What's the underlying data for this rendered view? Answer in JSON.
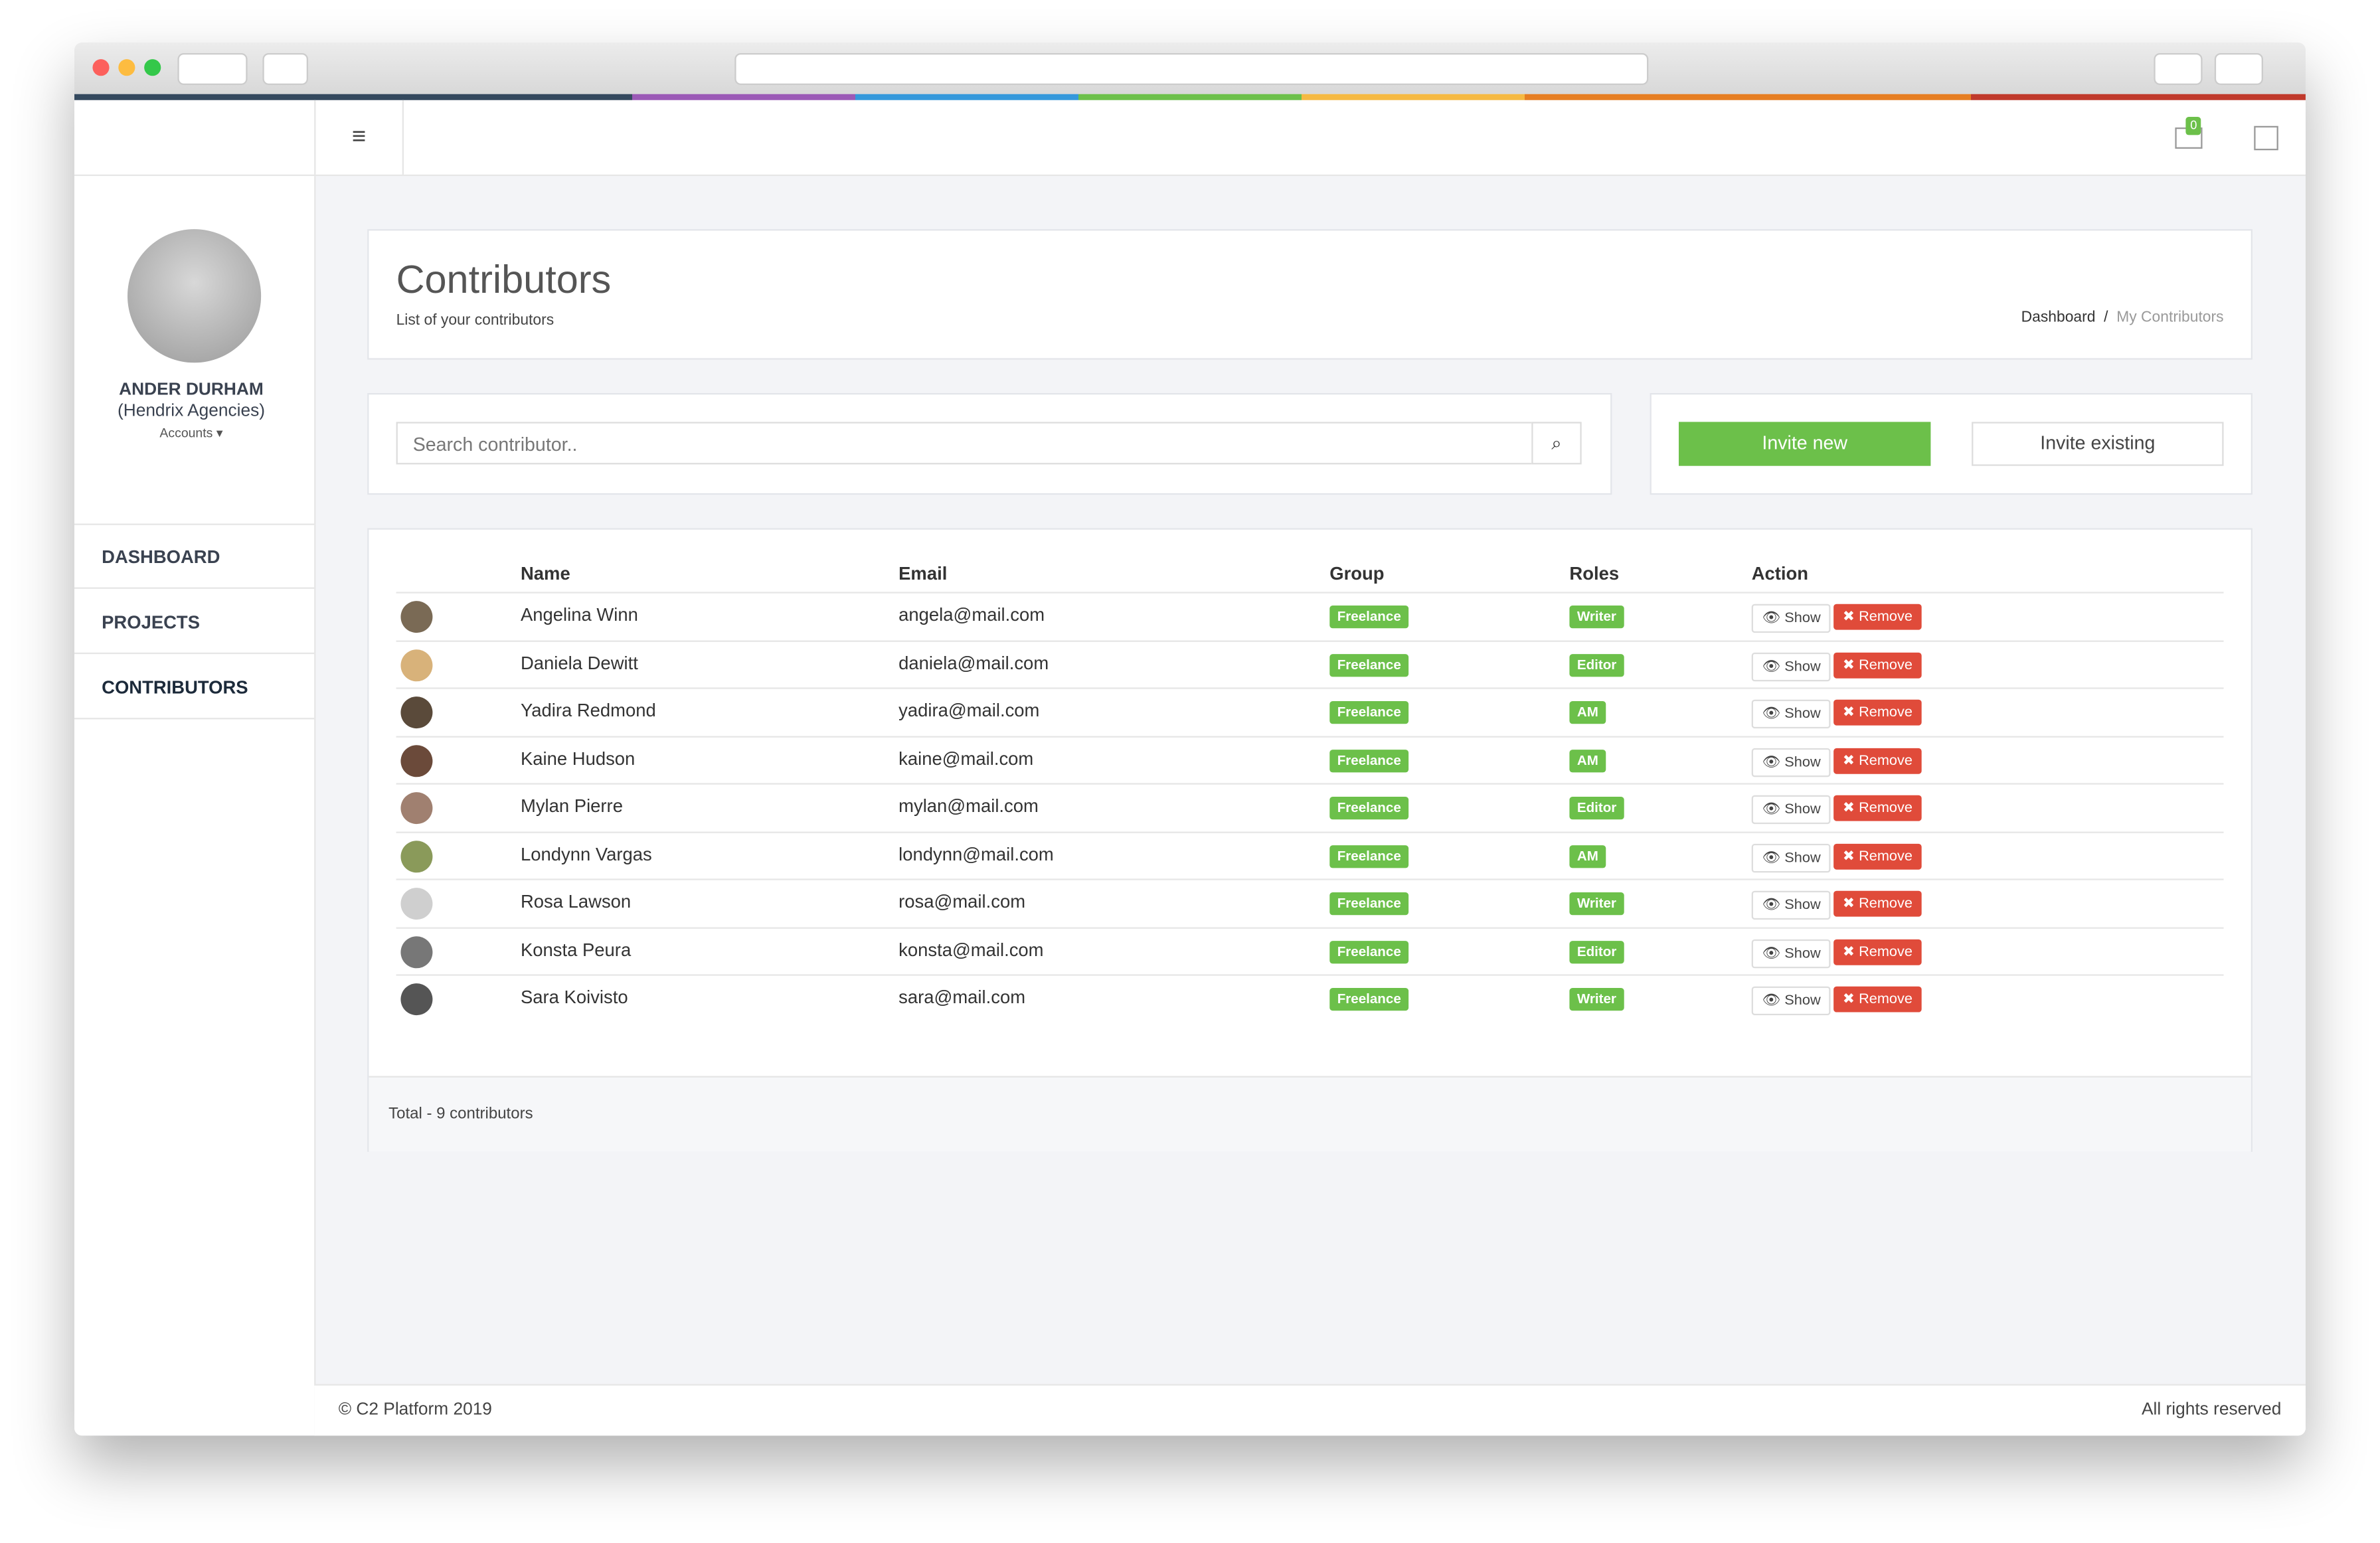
{
  "header": {
    "notifications": "0"
  },
  "user": {
    "name": "ANDER DURHAM",
    "company": "(Hendrix Agencies)",
    "accounts": "Accounts"
  },
  "nav": [
    "DASHBOARD",
    "PROJECTS",
    "CONTRIBUTORS"
  ],
  "page": {
    "title": "Contributors",
    "subtitle": "List of your contributors",
    "breadcrumb": [
      "Dashboard",
      "/",
      "My Contributors"
    ]
  },
  "search": {
    "placeholder": "Search contributor.."
  },
  "buttons": {
    "invite_new": "Invite new",
    "invite_existing": "Invite existing"
  },
  "table": {
    "headers": [
      "Name",
      "Email",
      "Group",
      "Roles",
      "Action"
    ],
    "actions": [
      "Show",
      "Remove"
    ],
    "rows": [
      [
        "Angelina Winn",
        "angela@mail.com",
        "Freelance",
        "Writer"
      ],
      [
        "Daniela Dewitt",
        "daniela@mail.com",
        "Freelance",
        "Editor"
      ],
      [
        "Yadira Redmond",
        "yadira@mail.com",
        "Freelance",
        "AM"
      ],
      [
        "Kaine Hudson",
        "kaine@mail.com",
        "Freelance",
        "AM"
      ],
      [
        "Mylan Pierre",
        "mylan@mail.com",
        "Freelance",
        "Editor"
      ],
      [
        "Londynn Vargas",
        "londynn@mail.com",
        "Freelance",
        "AM"
      ],
      [
        "Rosa Lawson",
        "rosa@mail.com",
        "Freelance",
        "Writer"
      ],
      [
        "Konsta Peura",
        "konsta@mail.com",
        "Freelance",
        "Editor"
      ],
      [
        "Sara Koivisto",
        "sara@mail.com",
        "Freelance",
        "Writer"
      ]
    ],
    "total": "Total - 9 contributors"
  },
  "footer": {
    "copyright": "© C2 Platform 2019",
    "rights": "All rights reserved"
  }
}
